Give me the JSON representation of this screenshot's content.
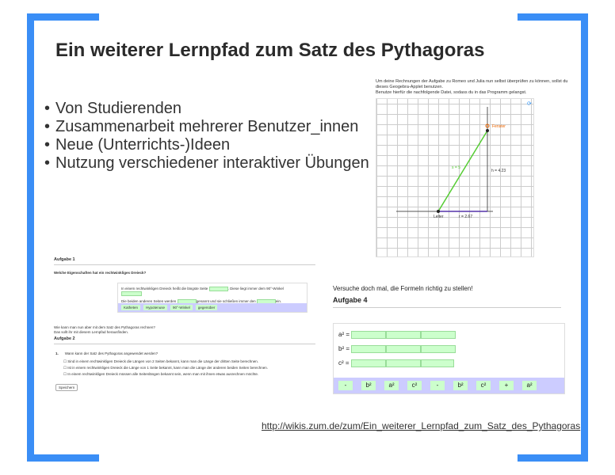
{
  "slide": {
    "title": "Ein weiterer Lernpfad zum Satz des Pythagoras",
    "accent": "#3a8ef6",
    "bullets": [
      "Von Studierenden",
      "Zusammenarbeit mehrerer Benutzer_innen",
      "Neue (Unterrichts-)Ideen",
      "Nutzung verschiedener interaktiver Übungen"
    ],
    "link": "http://wikis.zum.de/zum/Ein_weiterer_Lernpfad_zum_Satz_des_Pythagoras"
  },
  "geogebra": {
    "intro1": "Um deine Rechnungen der Aufgabe zu Romeo und Julia nun selbst überprüfen zu können, sollst du dieses Geogebra-Applet benutzen.",
    "intro2": "Benutze hierfür die nachfolgende Datei, sodass du in das Programm gelangst.",
    "fenster": "Fenster",
    "leiter": "Leiter",
    "s": "s = 5",
    "h": "h = 4.23",
    "r": "r = 2.67"
  },
  "aufgabe1": {
    "heading": "Aufgabe 1",
    "question": "Welche Eigenschaften hat ein rechtwinkliges Dreieck?",
    "line1a": "In einem rechtwinkligen Dreieck heißt die längste Seite",
    "line1b": ". Diese liegt immer dem 90°-Winkel",
    "line2a": "Die beiden anderen Seiten werden",
    "line2b": "genannt und sie schließen immer den",
    "line2c": "ein.",
    "chips": [
      "Katheten",
      "Hypotenuse",
      "90°-Winkel",
      "gegenüber"
    ],
    "text1": "Wie kann man nun aber mit dem Satz des Pythagoras rechnen?",
    "text2": "Das sollt ihr mit diesem Lernpfad herausfinden."
  },
  "aufgabe2": {
    "heading": "Aufgabe 2",
    "num": "1.",
    "question": "Wann kann der Satz des Pythagoras angewendet werden?",
    "options": [
      "Sind in einem rechtwinkligen Dreieck die Längen von 2 Seiten bekannt, kann man die Länge der dritten Seite berechnen.",
      "Ist in einem rechtwinkligen Dreieck die Länge von 1 Seite bekannt, kann man die Länge der anderen beiden Seiten berechnen.",
      "In einem rechtwinkligen Dreieck müssen alle Seitenlängen bekannt sein, wenn man mit ihnen etwas ausrechnen möchte."
    ],
    "save": "Speichern"
  },
  "aufgabe4": {
    "intro": "Versuche doch mal, die Formeln richtig zu stellen!",
    "heading": "Aufgabe 4",
    "rows": [
      "a² =",
      "b² =",
      "c² ="
    ],
    "chips": [
      "-",
      "b²",
      "a²",
      "c²",
      "-",
      "b²",
      "c²",
      "+",
      "a²"
    ]
  }
}
